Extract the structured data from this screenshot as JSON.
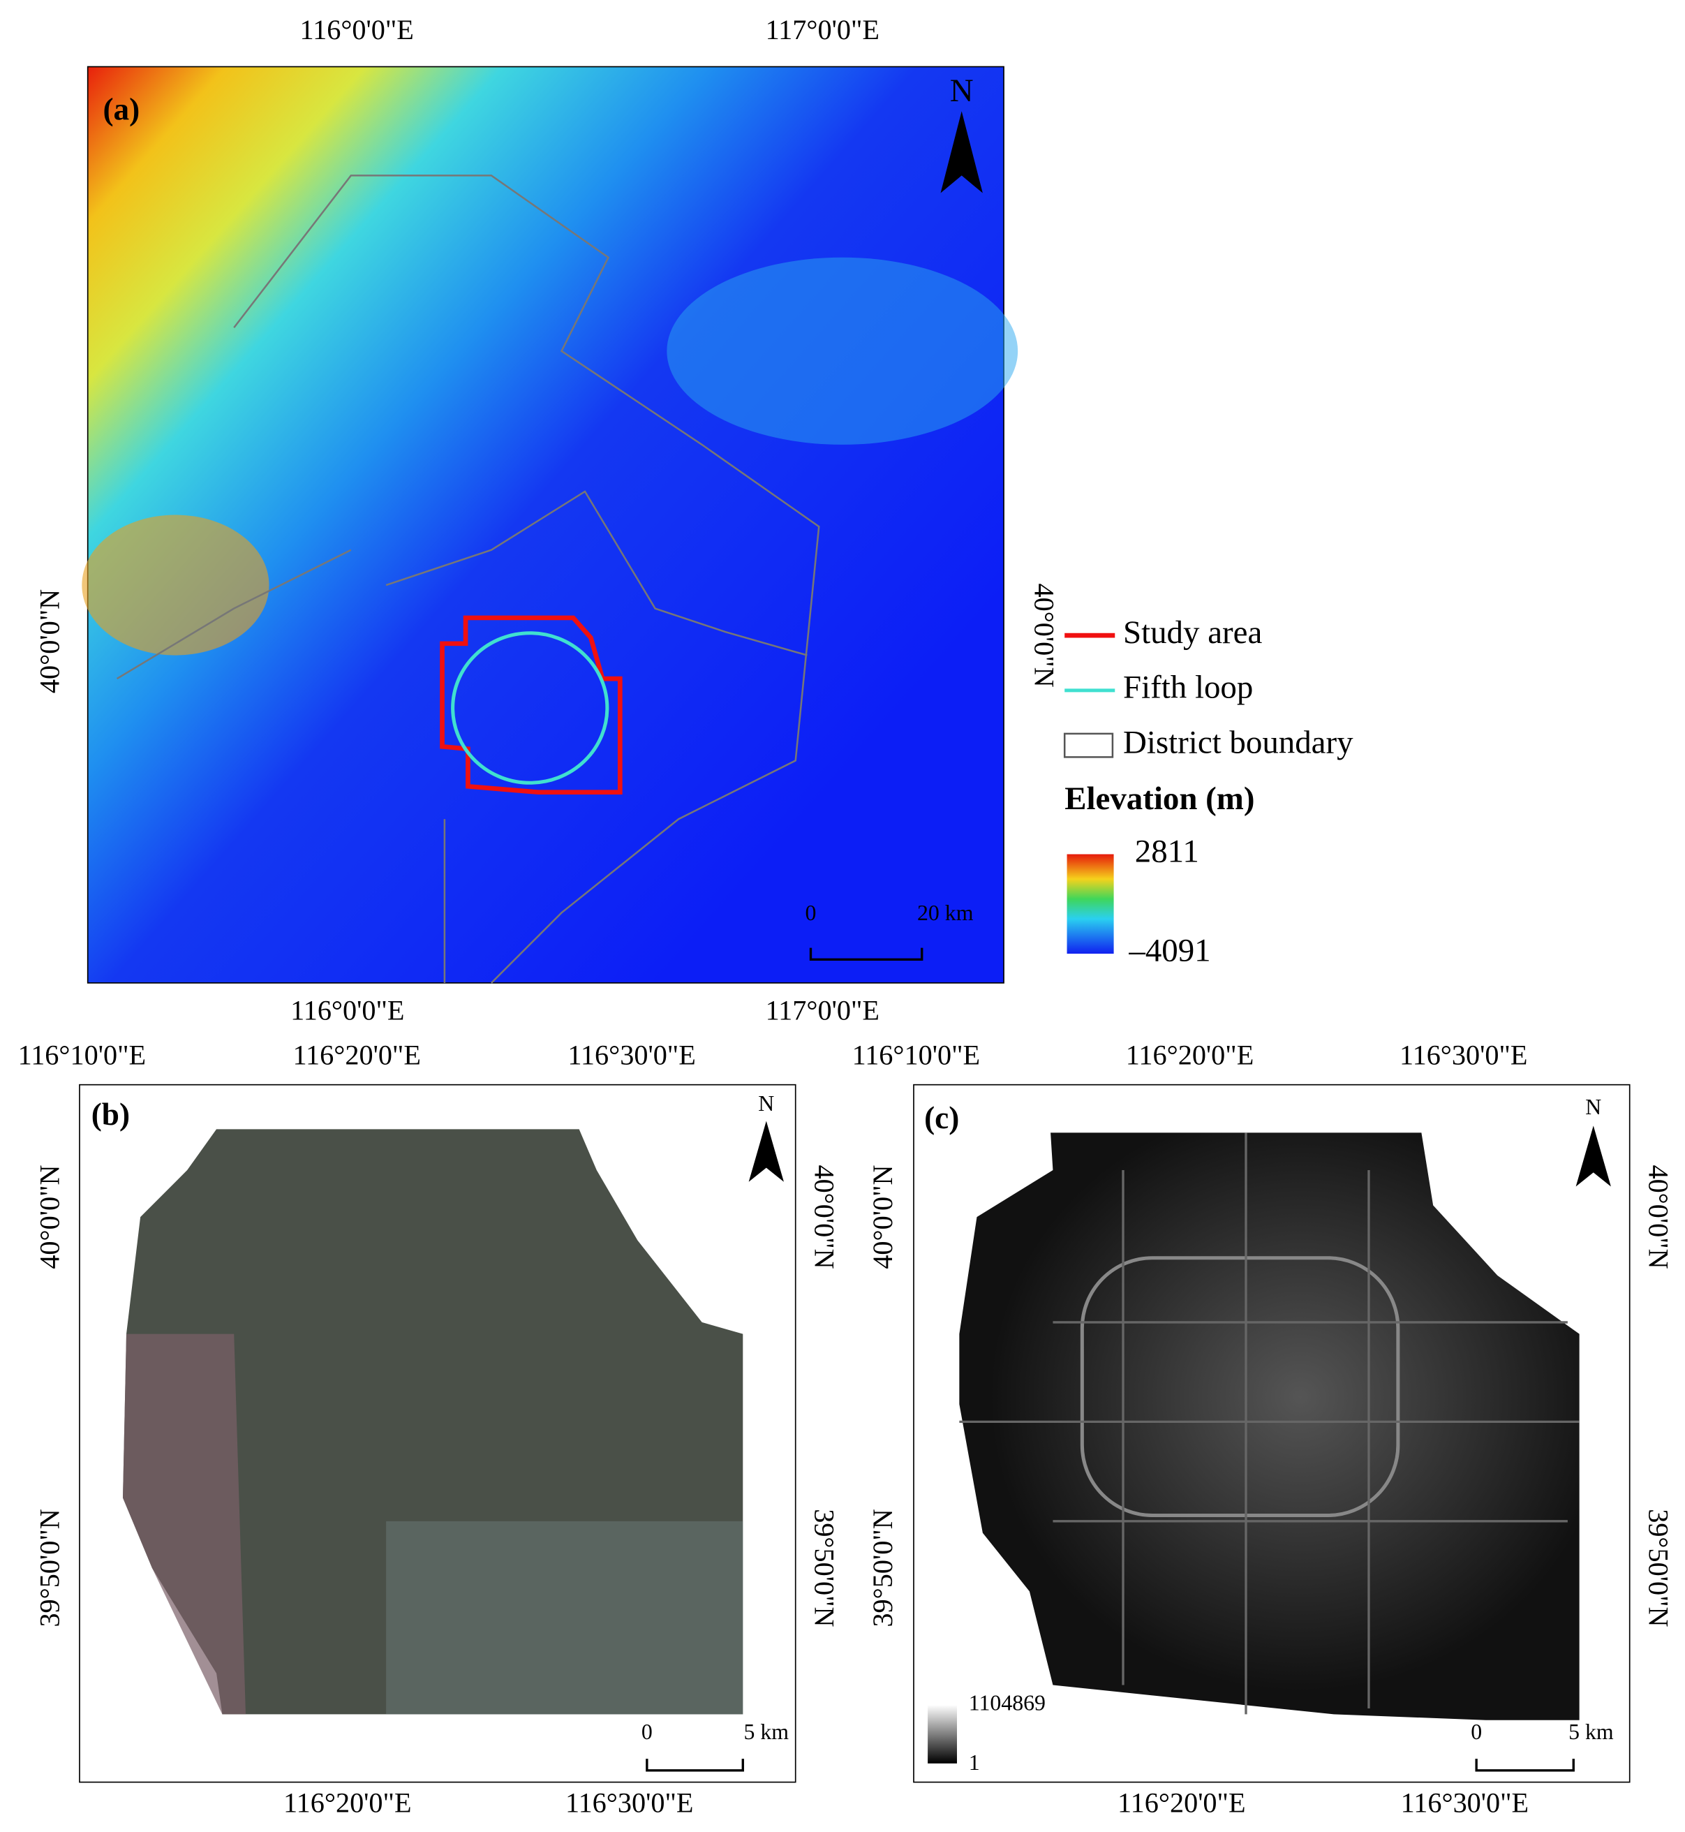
{
  "panels": [
    {
      "label": "(a)",
      "north": "N",
      "top_labels": [
        "116°0'0\"E",
        "117°0'0\"E"
      ],
      "bottom_labels": [
        "116°0'0\"E",
        "117°0'0\"E"
      ],
      "left_labels": [
        "40°0'0\"N"
      ],
      "right_labels": [
        "40°0'0\"N"
      ],
      "scale_bar": [
        "0",
        "20 km"
      ]
    },
    {
      "label": "(b)",
      "north": "N",
      "top_labels": [
        "116°10'0\"E",
        "116°20'0\"E",
        "116°30'0\"E"
      ],
      "bottom_labels": [
        "116°20'0\"E",
        "116°30'0\"E"
      ],
      "left_labels": [
        "40°0'0\"N",
        "39°50'0\"N"
      ],
      "right_labels": [
        "40°0'0\"N",
        "39°50'0\"N"
      ],
      "scale_bar": [
        "0",
        "5 km"
      ]
    },
    {
      "label": "(c)",
      "north": "N",
      "top_labels": [
        "116°10'0\"E",
        "116°20'0\"E",
        "116°30'0\"E"
      ],
      "bottom_labels": [
        "116°20'0\"E",
        "116°30'0\"E"
      ],
      "left_labels": [
        "40°0'0\"N",
        "39°50'0\"N"
      ],
      "right_labels": [
        "40°0'0\"N",
        "39°50'0\"N"
      ],
      "scale_bar": [
        "0",
        "5 km"
      ],
      "colorbar": [
        "1104869",
        "1"
      ]
    }
  ],
  "legend": {
    "items": [
      "Study area",
      "Fifth loop",
      "District boundary"
    ],
    "title": "Elevation (m)",
    "colorbar": [
      "2811",
      "–4091"
    ]
  }
}
